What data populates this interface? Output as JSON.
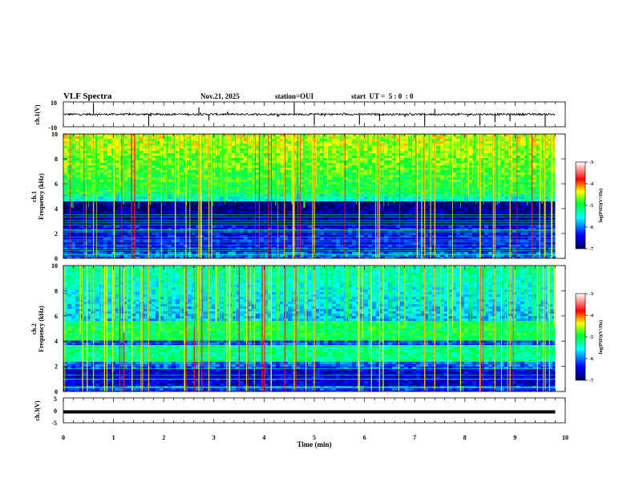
{
  "header": {
    "title": "VLF Spectra",
    "date": "Nov.21, 2025",
    "station": "station=OUI",
    "start_time": "start  UT =  5 : 0  : 0"
  },
  "chart_data": [
    {
      "type": "line",
      "name": "ch1-waveform",
      "ylabel": "ch.1(V)",
      "ylim": [
        -10,
        10
      ],
      "yticks": [
        "10",
        "-10"
      ],
      "baseline_value": 0,
      "spike_times_min": [
        0.6,
        1.7,
        2.7,
        2.9,
        4.6,
        5.0,
        5.9,
        6.3,
        7.2,
        7.4,
        8.3,
        8.6,
        8.9,
        9.6
      ]
    },
    {
      "type": "heatmap",
      "name": "ch1-spectrogram",
      "ylabel": "ch.1\nFrequency (kHz)",
      "xlim": [
        0,
        10
      ],
      "ylim": [
        0,
        10
      ],
      "yticks": [
        "0",
        "2",
        "4",
        "6",
        "8",
        "10"
      ],
      "colorbar": {
        "label": "log(PSD)(V²/Hz)",
        "range": [
          -7,
          -3
        ],
        "ticks": [
          "-3",
          "-4",
          "-5",
          "-6",
          "-7"
        ]
      }
    },
    {
      "type": "heatmap",
      "name": "ch2-spectrogram",
      "ylabel": "ch.2\nFrequency (kHz)",
      "xlim": [
        0,
        10
      ],
      "ylim": [
        0,
        10
      ],
      "yticks": [
        "0",
        "2",
        "4",
        "6",
        "8",
        "10"
      ],
      "colorbar": {
        "label": "log(PSD)(V²/Hz)",
        "range": [
          -7,
          -3
        ],
        "ticks": [
          "-3",
          "-4",
          "-5",
          "-6",
          "-7"
        ]
      }
    },
    {
      "type": "line",
      "name": "ch3-waveform",
      "ylabel": "ch.3(V)",
      "ylim": [
        -5,
        5
      ],
      "yticks": [
        "5",
        "0",
        "-5"
      ],
      "baseline_value": -0.6,
      "xlabel": "Time (min)",
      "xlim": [
        0,
        10
      ],
      "xticks": [
        "0",
        "1",
        "2",
        "3",
        "4",
        "5",
        "6",
        "7",
        "8",
        "9",
        "10"
      ]
    }
  ]
}
